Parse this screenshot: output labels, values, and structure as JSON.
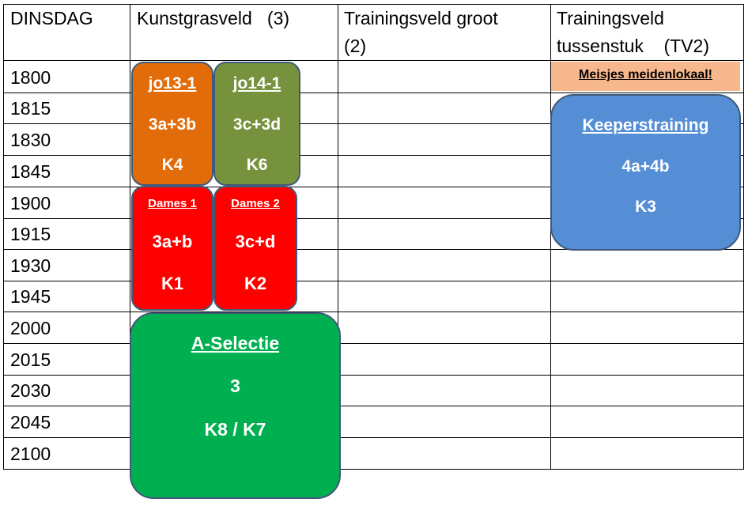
{
  "day": "DINSDAG",
  "fields": {
    "kunstgras": "Kunstgrasveld   (3)",
    "groot": "Trainingsveld groot\n(2)",
    "tussenstuk": "Trainingsveld\ntussenstuk    (TV2)"
  },
  "times": [
    "1800",
    "1815",
    "1830",
    "1845",
    "1900",
    "1915",
    "1930",
    "1945",
    "2000",
    "2015",
    "2030",
    "2045",
    "2100"
  ],
  "notice": "Meisjes meidenlokaal!",
  "blocks": {
    "jo13": {
      "team": "jo13-1",
      "field": "3a+3b",
      "kleedkamer": "K4",
      "color": "#e36c0a"
    },
    "jo14": {
      "team": "jo14-1",
      "field": "3c+3d",
      "kleedkamer": "K6",
      "color": "#76923c"
    },
    "dames1": {
      "team": "Dames 1",
      "field": "3a+b",
      "kleedkamer": "K1",
      "color": "#ff0000"
    },
    "dames2": {
      "team": "Dames 2",
      "field": "3c+d",
      "kleedkamer": "K2",
      "color": "#ff0000"
    },
    "aselectie": {
      "team": "A-Selectie",
      "field": "3",
      "kleedkamer": "K8 / K7",
      "color": "#00b050"
    },
    "keeper": {
      "team": "Keeperstraining",
      "field": "4a+4b",
      "kleedkamer": "K3",
      "color": "#558ed5"
    }
  }
}
